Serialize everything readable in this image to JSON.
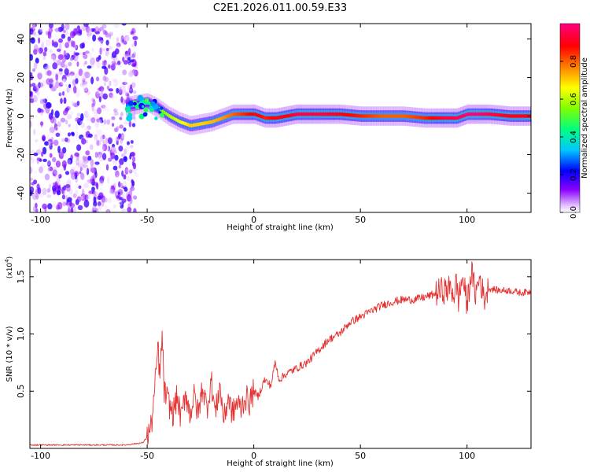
{
  "title": "C2E1.2026.011.00.59.E33",
  "chart_data": [
    {
      "type": "heatmap",
      "title": "C2E1.2026.011.00.59.E33",
      "xlabel": "Height of straight line (km)",
      "ylabel": "Frequency (Hz)",
      "xlim": [
        -105,
        130
      ],
      "ylim": [
        -50,
        48
      ],
      "xticks": [
        -100,
        -50,
        0,
        50,
        100
      ],
      "xtick_labels": [
        "-100",
        "-50",
        "0",
        "50",
        "100"
      ],
      "yticks": [
        -40,
        -20,
        0,
        20,
        40
      ],
      "ytick_labels": [
        "-40",
        "-20",
        "0",
        "20",
        "40"
      ],
      "colorbar": {
        "label": "Normalized spectral amplitude",
        "range": [
          0,
          1
        ],
        "ticks": [
          0.0,
          0.2,
          0.4,
          0.6,
          0.8
        ],
        "tick_labels": [
          "0.0",
          "0.2",
          "0.4",
          "0.6",
          "0.8"
        ],
        "colormap": [
          "#ffffff",
          "#8a00ff",
          "#0000ff",
          "#00c8ff",
          "#00ff80",
          "#80ff00",
          "#ffff00",
          "#ff8000",
          "#ff0000",
          "#ff0080"
        ]
      },
      "noise_region": {
        "x_range": [
          -105,
          -55
        ],
        "y_range": [
          -50,
          48
        ],
        "amplitude_range": [
          0.0,
          0.2
        ]
      },
      "ridge": {
        "x": [
          -60,
          -55,
          -50,
          -45,
          -40,
          -35,
          -30,
          -25,
          -20,
          -15,
          -10,
          -5,
          0,
          5,
          10,
          15,
          20,
          30,
          40,
          50,
          60,
          70,
          80,
          90,
          95,
          100,
          105,
          110,
          120,
          130
        ],
        "frequency": [
          5,
          6,
          7,
          4,
          0,
          -3,
          -5,
          -4,
          -3,
          -1,
          1,
          1,
          1,
          -1,
          -1,
          0,
          1,
          1,
          1,
          0,
          0,
          0,
          -1,
          -1,
          -1,
          1,
          1,
          1,
          0,
          0
        ],
        "amplitude": [
          0.3,
          0.35,
          0.45,
          0.5,
          0.6,
          0.65,
          0.7,
          0.7,
          0.72,
          0.75,
          0.8,
          0.85,
          0.9,
          0.85,
          0.9,
          0.9,
          0.95,
          0.95,
          0.9,
          0.85,
          0.8,
          0.8,
          0.85,
          0.95,
          0.95,
          1.0,
          1.0,
          0.95,
          0.9,
          0.9
        ]
      },
      "grid": false
    },
    {
      "type": "line",
      "xlabel": "Height of straight line (km)",
      "ylabel": "SNR (10 * v/v)",
      "y_multiplier_label": "(x10",
      "y_multiplier_exp": "4",
      "y_multiplier_close": ")",
      "xlim": [
        -105,
        130
      ],
      "ylim": [
        0,
        1.65
      ],
      "xticks": [
        -100,
        -50,
        0,
        50,
        100
      ],
      "xtick_labels": [
        "-100",
        "-50",
        "0",
        "50",
        "100"
      ],
      "yticks": [
        0.5,
        1.0,
        1.5
      ],
      "ytick_labels": [
        "0.5",
        "1.0",
        "1.5"
      ],
      "color": "#e53030",
      "series": [
        {
          "x": [
            -105,
            -80,
            -60,
            -52,
            -50,
            -48,
            -47,
            -46,
            -45,
            -44,
            -43,
            -42,
            -40,
            -38,
            -36,
            -34,
            -32,
            -30,
            -28,
            -26,
            -24,
            -22,
            -20,
            -18,
            -16,
            -14,
            -12,
            -10,
            -8,
            -6,
            -4,
            -2,
            0,
            2,
            5,
            8,
            10,
            12,
            15,
            20,
            25,
            30,
            35,
            40,
            45,
            50,
            55,
            60,
            65,
            70,
            75,
            80,
            85,
            88,
            90,
            92,
            94,
            95,
            96,
            98,
            100,
            102,
            104,
            106,
            108,
            110,
            115,
            120,
            125,
            130
          ],
          "y": [
            0.03,
            0.03,
            0.03,
            0.05,
            0.1,
            0.2,
            0.4,
            0.6,
            0.9,
            0.6,
            1.0,
            0.5,
            0.4,
            0.3,
            0.45,
            0.25,
            0.5,
            0.3,
            0.45,
            0.3,
            0.55,
            0.35,
            0.6,
            0.3,
            0.55,
            0.25,
            0.45,
            0.3,
            0.4,
            0.35,
            0.45,
            0.4,
            0.5,
            0.45,
            0.6,
            0.55,
            0.75,
            0.6,
            0.65,
            0.7,
            0.75,
            0.85,
            0.95,
            1.0,
            1.1,
            1.15,
            1.2,
            1.25,
            1.28,
            1.3,
            1.3,
            1.32,
            1.35,
            1.38,
            1.38,
            1.4,
            1.35,
            1.45,
            1.3,
            1.5,
            1.25,
            1.55,
            1.35,
            1.5,
            1.3,
            1.4,
            1.38,
            1.38,
            1.36,
            1.37
          ]
        }
      ],
      "grid": false
    }
  ]
}
